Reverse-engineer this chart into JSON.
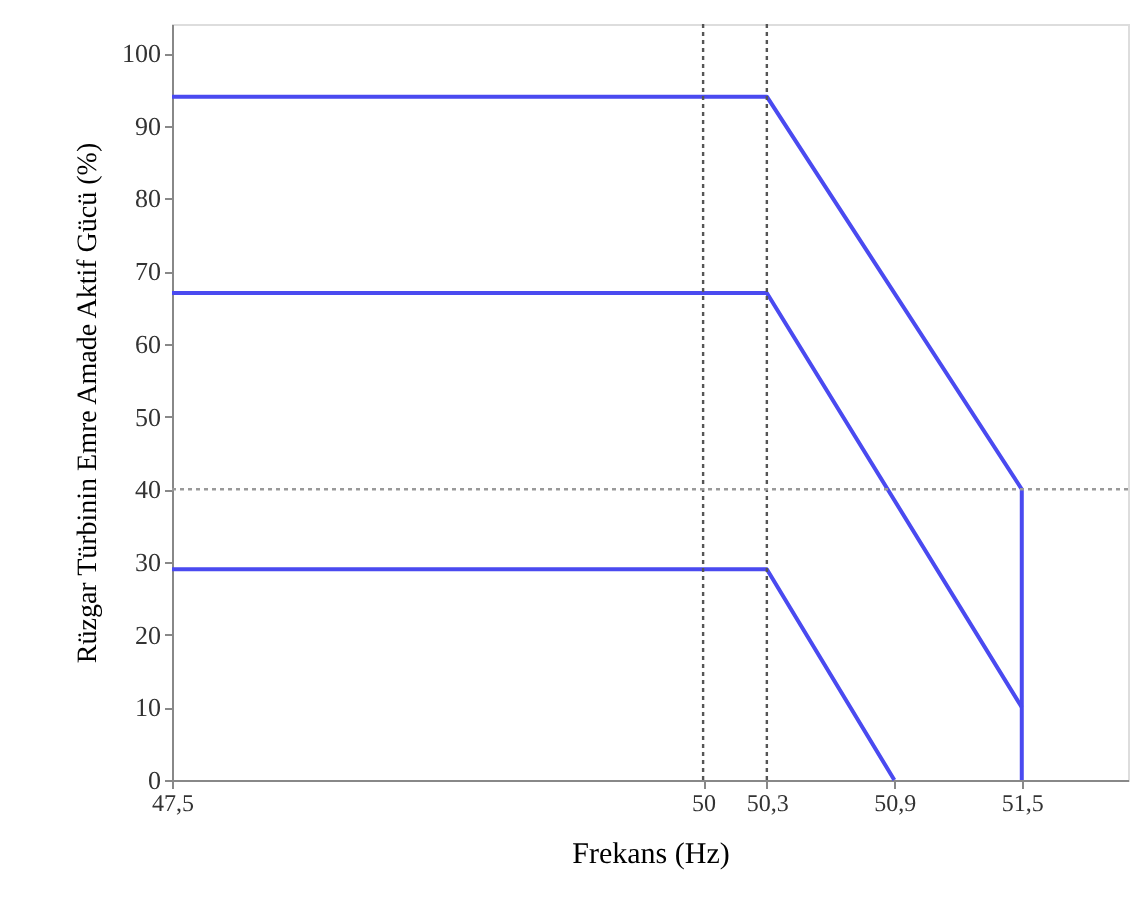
{
  "chart_data": {
    "type": "line",
    "xlabel": "Frekans (Hz)",
    "ylabel": "Rüzgar Türbinin Emre Amade  Aktif Gücü (%)",
    "series": [
      {
        "color": "#4a4af0",
        "x": [
          47.5,
          50.3,
          51.5,
          51.5
        ],
        "values": [
          94,
          94,
          40,
          0
        ]
      },
      {
        "color": "#4a4af0",
        "x": [
          47.5,
          50.3,
          51.5
        ],
        "values": [
          67,
          67,
          10
        ]
      },
      {
        "color": "#4a4af0",
        "x": [
          47.5,
          50.3,
          50.9
        ],
        "values": [
          29,
          29,
          0
        ]
      }
    ],
    "xlim": [
      47.5,
      52
    ],
    "xticks": [
      {
        "value": 47.5,
        "label": "47,5"
      },
      50,
      {
        "value": 50.3,
        "label": "50,3"
      },
      {
        "value": 50.9,
        "label": "50,9"
      },
      {
        "value": 51.5,
        "label": "51,5"
      }
    ],
    "ylim": [
      0,
      104
    ],
    "yticks": [
      0,
      10,
      20,
      30,
      40,
      50,
      60,
      70,
      80,
      90,
      100
    ],
    "ref_lines": [
      {
        "axis": "x",
        "value": 50,
        "color": "#555555",
        "line_style": "dotted"
      },
      {
        "axis": "x",
        "value": 50.3,
        "color": "#555555",
        "line_style": "dotted"
      },
      {
        "axis": "y",
        "value": 40,
        "color": "#999999",
        "line_style": "dotted"
      }
    ],
    "grid": false,
    "line_style": "solid"
  }
}
